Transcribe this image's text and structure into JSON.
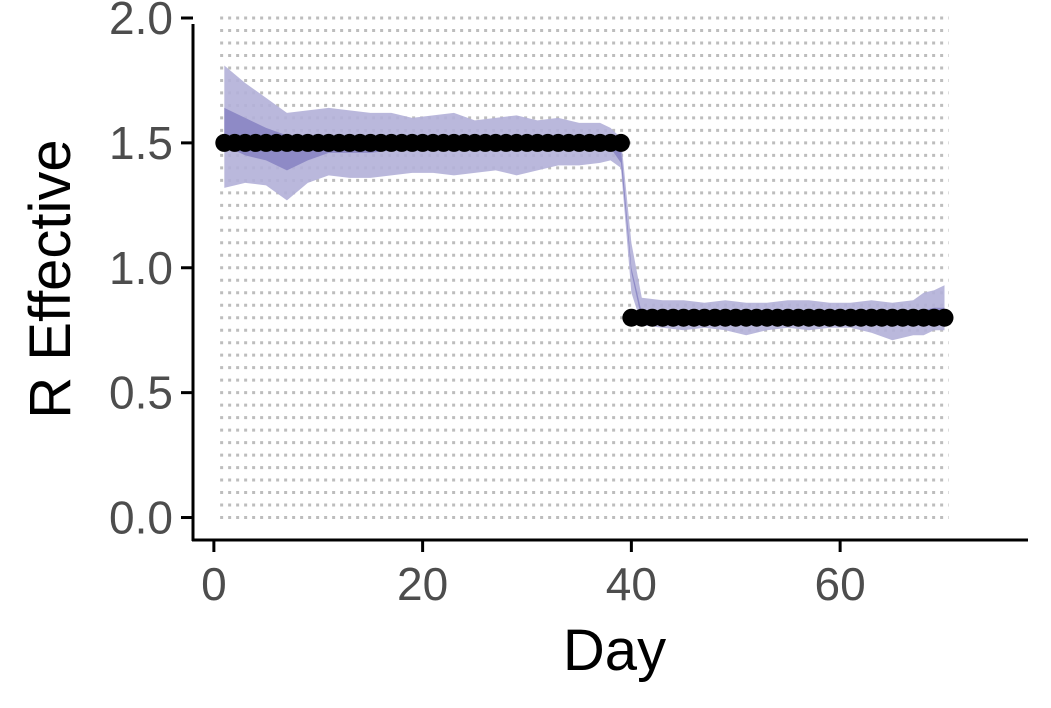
{
  "chart_data": {
    "type": "line",
    "title": "",
    "xlabel": "Day",
    "ylabel": "R Effective",
    "xlim": [
      -2,
      78
    ],
    "ylim": [
      -0.09,
      2.0
    ],
    "x_ticks": [
      "0",
      "20",
      "40",
      "60"
    ],
    "y_ticks": [
      "0.0",
      "0.5",
      "1.0",
      "1.5",
      "2.0"
    ],
    "grid": "horizontal dotted",
    "legend": "none",
    "colors": {
      "outer_band": "#b3b0d8",
      "inner_band": "#8a85c3",
      "points": "#000000",
      "grid": "#bdbdbd",
      "axis": "#000000"
    },
    "series": [
      {
        "role": "true-R-points",
        "x": [
          1,
          2,
          3,
          4,
          5,
          6,
          7,
          8,
          9,
          10,
          11,
          12,
          13,
          14,
          15,
          16,
          17,
          18,
          19,
          20,
          21,
          22,
          23,
          24,
          25,
          26,
          27,
          28,
          29,
          30,
          31,
          32,
          33,
          34,
          35,
          36,
          37,
          38,
          39,
          40,
          41,
          42,
          43,
          44,
          45,
          46,
          47,
          48,
          49,
          50,
          51,
          52,
          53,
          54,
          55,
          56,
          57,
          58,
          59,
          60,
          61,
          62,
          63,
          64,
          65,
          66,
          67,
          68,
          69,
          70
        ],
        "y": [
          1.5,
          1.5,
          1.5,
          1.5,
          1.5,
          1.5,
          1.5,
          1.5,
          1.5,
          1.5,
          1.5,
          1.5,
          1.5,
          1.5,
          1.5,
          1.5,
          1.5,
          1.5,
          1.5,
          1.5,
          1.5,
          1.5,
          1.5,
          1.5,
          1.5,
          1.5,
          1.5,
          1.5,
          1.5,
          1.5,
          1.5,
          1.5,
          1.5,
          1.5,
          1.5,
          1.5,
          1.5,
          1.5,
          1.5,
          0.8,
          0.8,
          0.8,
          0.8,
          0.8,
          0.8,
          0.8,
          0.8,
          0.8,
          0.8,
          0.8,
          0.8,
          0.8,
          0.8,
          0.8,
          0.8,
          0.8,
          0.8,
          0.8,
          0.8,
          0.8,
          0.8,
          0.8,
          0.8,
          0.8,
          0.8,
          0.8,
          0.8,
          0.8,
          0.8,
          0.8
        ]
      }
    ],
    "bands": {
      "x": [
        1,
        3,
        5,
        7,
        9,
        11,
        13,
        15,
        17,
        19,
        21,
        23,
        25,
        27,
        29,
        31,
        33,
        35,
        37,
        38,
        39,
        40,
        41,
        43,
        45,
        47,
        49,
        51,
        53,
        55,
        57,
        59,
        61,
        63,
        65,
        67,
        68,
        69,
        70
      ],
      "outer_upper": [
        1.81,
        1.74,
        1.68,
        1.62,
        1.63,
        1.64,
        1.63,
        1.62,
        1.62,
        1.6,
        1.61,
        1.62,
        1.59,
        1.6,
        1.61,
        1.59,
        1.6,
        1.58,
        1.58,
        1.56,
        1.52,
        1.1,
        0.88,
        0.87,
        0.87,
        0.86,
        0.87,
        0.86,
        0.86,
        0.87,
        0.87,
        0.86,
        0.86,
        0.87,
        0.86,
        0.87,
        0.9,
        0.91,
        0.93
      ],
      "outer_lower": [
        1.32,
        1.34,
        1.33,
        1.27,
        1.34,
        1.37,
        1.36,
        1.36,
        1.37,
        1.38,
        1.38,
        1.37,
        1.38,
        1.39,
        1.37,
        1.39,
        1.41,
        1.41,
        1.42,
        1.43,
        1.4,
        0.9,
        0.77,
        0.76,
        0.75,
        0.76,
        0.75,
        0.73,
        0.75,
        0.76,
        0.75,
        0.76,
        0.76,
        0.74,
        0.71,
        0.73,
        0.73,
        0.75,
        0.75
      ],
      "inner_upper": [
        1.64,
        1.6,
        1.56,
        1.53,
        1.53,
        1.52,
        1.52,
        1.52,
        1.51,
        1.52,
        1.51,
        1.52,
        1.52,
        1.52,
        1.51,
        1.52,
        1.51,
        1.52,
        1.51,
        1.52,
        1.48,
        1.0,
        0.82,
        0.82,
        0.81,
        0.81,
        0.81,
        0.81,
        0.81,
        0.81,
        0.81,
        0.81,
        0.81,
        0.81,
        0.81,
        0.82,
        0.83,
        0.84,
        0.84
      ],
      "inner_lower": [
        1.49,
        1.45,
        1.43,
        1.39,
        1.43,
        1.46,
        1.46,
        1.46,
        1.47,
        1.47,
        1.47,
        1.47,
        1.48,
        1.48,
        1.47,
        1.48,
        1.48,
        1.48,
        1.48,
        1.48,
        1.42,
        0.98,
        0.79,
        0.79,
        0.79,
        0.79,
        0.79,
        0.78,
        0.79,
        0.79,
        0.79,
        0.79,
        0.79,
        0.79,
        0.78,
        0.78,
        0.78,
        0.79,
        0.79
      ]
    }
  }
}
